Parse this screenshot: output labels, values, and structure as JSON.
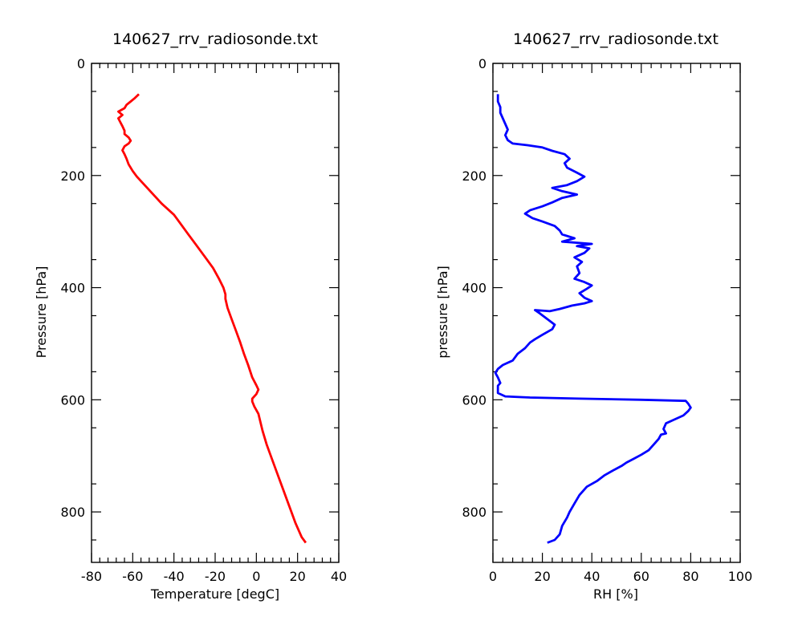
{
  "chart_data": [
    {
      "type": "line",
      "title": "140627_rrv_radiosonde.txt",
      "xlabel": "Temperature [degC]",
      "ylabel": "Pressure [hPa]",
      "xlim": [
        -80,
        40
      ],
      "ylim": [
        890,
        0
      ],
      "x_ticks": [
        -80,
        -60,
        -40,
        -20,
        0,
        20,
        40
      ],
      "y_ticks": [
        0,
        200,
        400,
        600,
        800
      ],
      "grid": false,
      "color": "#ff0000",
      "series": [
        {
          "points": [
            [
              24,
              855
            ],
            [
              22,
              845
            ],
            [
              19,
              820
            ],
            [
              16,
              790
            ],
            [
              13,
              760
            ],
            [
              10,
              730
            ],
            [
              7,
              700
            ],
            [
              5,
              680
            ],
            [
              3,
              655
            ],
            [
              1,
              625
            ],
            [
              -1,
              612
            ],
            [
              -2,
              603
            ],
            [
              -2,
              598
            ],
            [
              0,
              590
            ],
            [
              1,
              582
            ],
            [
              0,
              574
            ],
            [
              -2,
              560
            ],
            [
              -4,
              538
            ],
            [
              -6,
              518
            ],
            [
              -8,
              496
            ],
            [
              -10,
              476
            ],
            [
              -12,
              456
            ],
            [
              -14,
              436
            ],
            [
              -15,
              420
            ],
            [
              -15,
              412
            ],
            [
              -16,
              400
            ],
            [
              -18,
              385
            ],
            [
              -21,
              365
            ],
            [
              -25,
              345
            ],
            [
              -29,
              325
            ],
            [
              -33,
              305
            ],
            [
              -37,
              285
            ],
            [
              -40,
              270
            ],
            [
              -43,
              260
            ],
            [
              -46,
              250
            ],
            [
              -49,
              238
            ],
            [
              -52,
              226
            ],
            [
              -55,
              214
            ],
            [
              -58,
              202
            ],
            [
              -60,
              192
            ],
            [
              -62,
              180
            ],
            [
              -63,
              170
            ],
            [
              -64,
              162
            ],
            [
              -65,
              155
            ],
            [
              -64,
              148
            ],
            [
              -62,
              143
            ],
            [
              -61,
              138
            ],
            [
              -62,
              132
            ],
            [
              -64,
              126
            ],
            [
              -64,
              120
            ],
            [
              -65,
              112
            ],
            [
              -66,
              105
            ],
            [
              -67,
              98
            ],
            [
              -65,
              92
            ],
            [
              -67,
              86
            ],
            [
              -64,
              80
            ],
            [
              -63,
              74
            ],
            [
              -61,
              68
            ],
            [
              -59,
              62
            ],
            [
              -57,
              55
            ]
          ]
        }
      ]
    },
    {
      "type": "line",
      "title": "140627_rrv_radiosonde.txt",
      "xlabel": "RH [%]",
      "ylabel": "pressure [hPa]",
      "xlim": [
        0,
        100
      ],
      "ylim": [
        890,
        0
      ],
      "x_ticks": [
        0,
        20,
        40,
        60,
        80,
        100
      ],
      "y_ticks": [
        0,
        200,
        400,
        600,
        800
      ],
      "grid": false,
      "color": "#0000ff",
      "series": [
        {
          "points": [
            [
              22,
              855
            ],
            [
              25,
              850
            ],
            [
              27,
              840
            ],
            [
              28,
              825
            ],
            [
              30,
              810
            ],
            [
              31,
              800
            ],
            [
              33,
              785
            ],
            [
              35,
              770
            ],
            [
              38,
              755
            ],
            [
              42,
              745
            ],
            [
              45,
              735
            ],
            [
              49,
              725
            ],
            [
              52,
              718
            ],
            [
              54,
              712
            ],
            [
              57,
              705
            ],
            [
              60,
              698
            ],
            [
              63,
              690
            ],
            [
              65,
              680
            ],
            [
              67,
              670
            ],
            [
              68,
              662
            ],
            [
              70,
              660
            ],
            [
              69,
              652
            ],
            [
              70,
              642
            ],
            [
              73,
              636
            ],
            [
              77,
              628
            ],
            [
              79,
              620
            ],
            [
              80,
              614
            ],
            [
              79,
              607
            ],
            [
              78,
              602
            ],
            [
              60,
              600
            ],
            [
              35,
              598
            ],
            [
              15,
              596
            ],
            [
              5,
              594
            ],
            [
              2,
              588
            ],
            [
              2,
              575
            ],
            [
              3,
              570
            ],
            [
              2,
              560
            ],
            [
              1,
              552
            ],
            [
              2,
              545
            ],
            [
              4,
              538
            ],
            [
              8,
              530
            ],
            [
              10,
              518
            ],
            [
              13,
              508
            ],
            [
              15,
              498
            ],
            [
              17,
              492
            ],
            [
              20,
              484
            ],
            [
              24,
              474
            ],
            [
              25,
              466
            ],
            [
              22,
              456
            ],
            [
              19,
              446
            ],
            [
              17,
              440
            ],
            [
              23,
              442
            ],
            [
              27,
              438
            ],
            [
              32,
              432
            ],
            [
              37,
              428
            ],
            [
              40,
              424
            ],
            [
              37,
              418
            ],
            [
              35,
              410
            ],
            [
              38,
              402
            ],
            [
              40,
              396
            ],
            [
              37,
              390
            ],
            [
              33,
              384
            ],
            [
              35,
              374
            ],
            [
              34,
              362
            ],
            [
              36,
              354
            ],
            [
              33,
              346
            ],
            [
              37,
              338
            ],
            [
              39,
              330
            ],
            [
              34,
              326
            ],
            [
              40,
              322
            ],
            [
              28,
              318
            ],
            [
              33,
              312
            ],
            [
              28,
              305
            ],
            [
              27,
              298
            ],
            [
              25,
              290
            ],
            [
              20,
              282
            ],
            [
              16,
              276
            ],
            [
              13,
              268
            ],
            [
              15,
              262
            ],
            [
              20,
              255
            ],
            [
              24,
              248
            ],
            [
              28,
              240
            ],
            [
              34,
              234
            ],
            [
              28,
              228
            ],
            [
              24,
              222
            ],
            [
              30,
              217
            ],
            [
              34,
              210
            ],
            [
              37,
              202
            ],
            [
              34,
              195
            ],
            [
              30,
              186
            ],
            [
              29,
              178
            ],
            [
              31,
              170
            ],
            [
              29,
              162
            ],
            [
              24,
              156
            ],
            [
              20,
              150
            ],
            [
              14,
              146
            ],
            [
              8,
              143
            ],
            [
              6,
              137
            ],
            [
              5,
              128
            ],
            [
              6,
              118
            ],
            [
              5,
              108
            ],
            [
              4,
              98
            ],
            [
              3,
              88
            ],
            [
              3,
              78
            ],
            [
              2,
              68
            ],
            [
              2,
              55
            ]
          ]
        }
      ]
    }
  ]
}
